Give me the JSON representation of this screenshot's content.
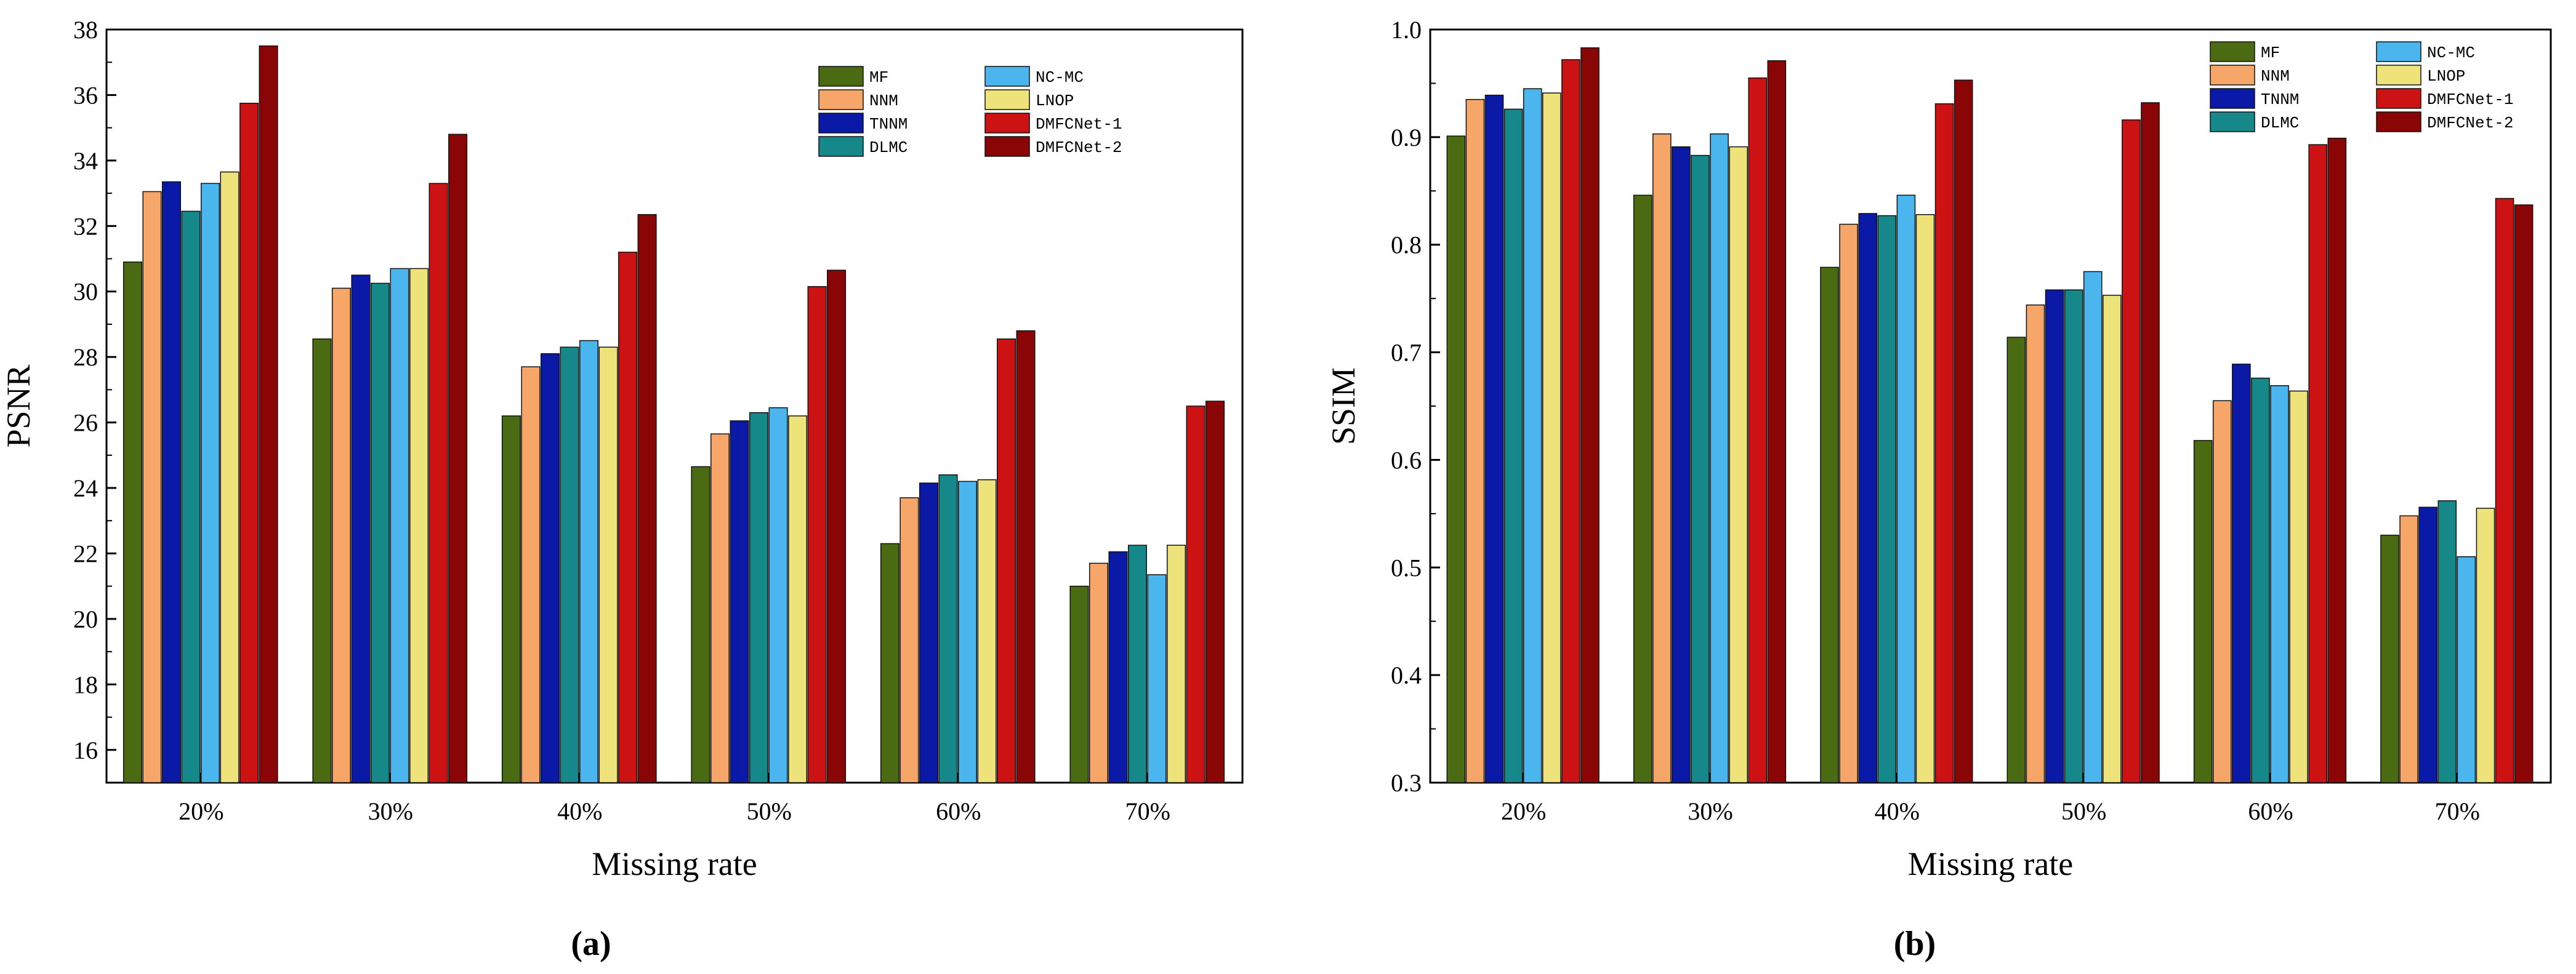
{
  "colors": {
    "MF": "#4a6b12",
    "NNM": "#f5a668",
    "TNNM": "#0b1aa6",
    "DLMC": "#17888a",
    "NC-MC": "#4bb6ee",
    "LNOP": "#eee37a",
    "DMFCNet-1": "#cc1212",
    "DMFCNet-2": "#8a0606"
  },
  "chart_data": [
    {
      "type": "bar",
      "panel_label": "(a)",
      "xlabel": "Missing rate",
      "ylabel": "PSNR",
      "ylim": [
        15,
        38
      ],
      "yticks": [
        16,
        18,
        20,
        22,
        24,
        26,
        28,
        30,
        32,
        34,
        36,
        38
      ],
      "legend_position": "top-right",
      "categories": [
        "20%",
        "30%",
        "40%",
        "50%",
        "60%",
        "70%"
      ],
      "series": [
        {
          "name": "MF",
          "values": [
            30.9,
            28.55,
            26.2,
            24.65,
            22.3,
            21.0
          ]
        },
        {
          "name": "NNM",
          "values": [
            33.05,
            30.1,
            27.7,
            25.65,
            23.7,
            21.7
          ]
        },
        {
          "name": "TNNM",
          "values": [
            33.35,
            30.5,
            28.1,
            26.05,
            24.15,
            22.05
          ]
        },
        {
          "name": "DLMC",
          "values": [
            32.45,
            30.25,
            28.3,
            26.3,
            24.4,
            22.25
          ]
        },
        {
          "name": "NC-MC",
          "values": [
            33.3,
            30.7,
            28.5,
            26.45,
            24.2,
            21.35
          ]
        },
        {
          "name": "LNOP",
          "values": [
            33.65,
            30.7,
            28.3,
            26.2,
            24.25,
            22.25
          ]
        },
        {
          "name": "DMFCNet-1",
          "values": [
            35.75,
            33.3,
            31.2,
            30.15,
            28.55,
            26.5
          ]
        },
        {
          "name": "DMFCNet-2",
          "values": [
            37.5,
            34.8,
            32.35,
            30.65,
            28.8,
            26.65
          ]
        }
      ]
    },
    {
      "type": "bar",
      "panel_label": "(b)",
      "xlabel": "Missing rate",
      "ylabel": "SSIM",
      "ylim": [
        0.3,
        1.0
      ],
      "yticks": [
        0.3,
        0.4,
        0.5,
        0.6,
        0.7,
        0.8,
        0.9,
        1.0
      ],
      "ytick_labels": [
        "0.3",
        "0.4",
        "0.5",
        "0.6",
        "0.7",
        "0.8",
        "0.9",
        "1.0"
      ],
      "legend_position": "top-right",
      "categories": [
        "20%",
        "30%",
        "40%",
        "50%",
        "60%",
        "70%"
      ],
      "series": [
        {
          "name": "MF",
          "values": [
            0.901,
            0.846,
            0.779,
            0.714,
            0.618,
            0.53
          ]
        },
        {
          "name": "NNM",
          "values": [
            0.935,
            0.903,
            0.819,
            0.744,
            0.655,
            0.548
          ]
        },
        {
          "name": "TNNM",
          "values": [
            0.939,
            0.891,
            0.829,
            0.758,
            0.689,
            0.556
          ]
        },
        {
          "name": "DLMC",
          "values": [
            0.926,
            0.883,
            0.827,
            0.758,
            0.676,
            0.562
          ]
        },
        {
          "name": "NC-MC",
          "values": [
            0.945,
            0.903,
            0.846,
            0.775,
            0.669,
            0.51
          ]
        },
        {
          "name": "LNOP",
          "values": [
            0.941,
            0.891,
            0.828,
            0.753,
            0.664,
            0.555
          ]
        },
        {
          "name": "DMFCNet-1",
          "values": [
            0.972,
            0.955,
            0.931,
            0.916,
            0.893,
            0.843
          ]
        },
        {
          "name": "DMFCNet-2",
          "values": [
            0.983,
            0.971,
            0.953,
            0.932,
            0.899,
            0.837
          ]
        }
      ]
    }
  ]
}
